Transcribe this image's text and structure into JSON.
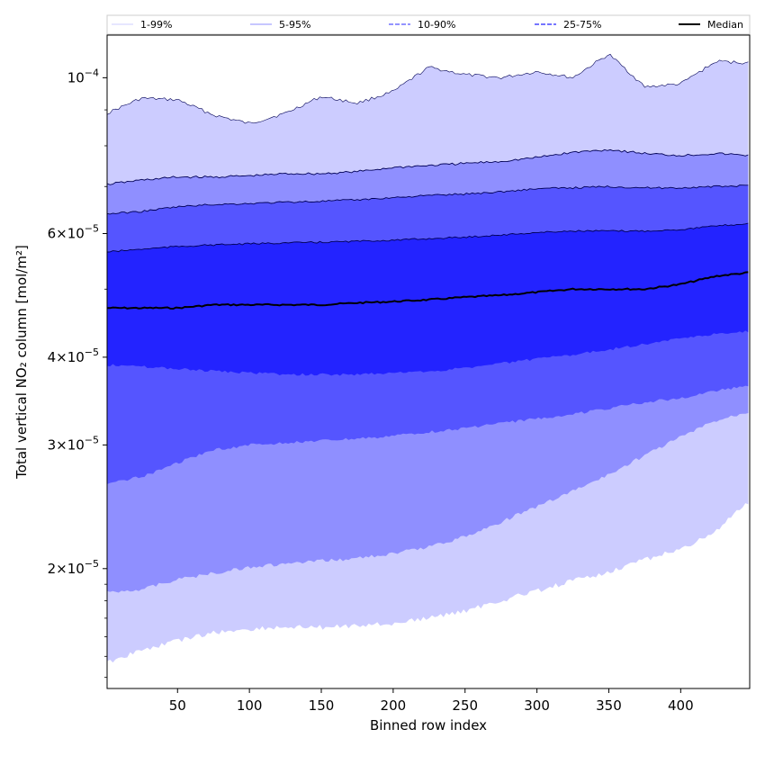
{
  "chart_data": {
    "type": "area",
    "title": "",
    "xlabel": "Binned row index",
    "ylabel": "Total vertical NO₂ column [mol/m²]",
    "xlim": [
      1,
      448
    ],
    "ylim": [
      1.35e-05,
      0.000115
    ],
    "y_scale": "log",
    "x_ticks": [
      50,
      100,
      150,
      200,
      250,
      300,
      350,
      400
    ],
    "y_ticks": [
      {
        "value": 2e-05,
        "mantissa": "2",
        "exponent": "−5"
      },
      {
        "value": 3e-05,
        "mantissa": "3",
        "exponent": "−5"
      },
      {
        "value": 4e-05,
        "mantissa": "4",
        "exponent": "−5"
      },
      {
        "value": 6e-05,
        "mantissa": "6",
        "exponent": "−5"
      },
      {
        "value": 0.0001,
        "mantissa": "",
        "exponent": "−4"
      }
    ],
    "legend_position": "top, horizontal across the plot",
    "legend": [
      "1-99%",
      "5-95%",
      "10-90%",
      "25-75%",
      "Median"
    ],
    "x": [
      1,
      25,
      50,
      75,
      100,
      125,
      150,
      175,
      200,
      225,
      250,
      275,
      300,
      325,
      350,
      375,
      400,
      425,
      448
    ],
    "bands": [
      {
        "name": "1-99%",
        "color": "#ccccff",
        "lower": [
          1.47e-05,
          1.53e-05,
          1.58e-05,
          1.62e-05,
          1.64e-05,
          1.65e-05,
          1.65e-05,
          1.66e-05,
          1.67e-05,
          1.7e-05,
          1.74e-05,
          1.8e-05,
          1.86e-05,
          1.92e-05,
          1.98e-05,
          2.06e-05,
          2.13e-05,
          2.26e-05,
          2.5e-05
        ],
        "upper": [
          8.9e-05,
          9.35e-05,
          9.3e-05,
          8.85e-05,
          8.6e-05,
          8.9e-05,
          9.4e-05,
          9.2e-05,
          9.55e-05,
          0.0001035,
          0.000101,
          0.0001,
          0.000102,
          0.0001,
          0.000108,
          9.7e-05,
          9.8e-05,
          0.0001055,
          0.000105
        ]
      },
      {
        "name": "5-95%",
        "color": "#8f8fff",
        "lower": [
          1.85e-05,
          1.87e-05,
          1.93e-05,
          1.97e-05,
          2.01e-05,
          2.03e-05,
          2.05e-05,
          2.07e-05,
          2.1e-05,
          2.15e-05,
          2.22e-05,
          2.33e-05,
          2.45e-05,
          2.58e-05,
          2.72e-05,
          2.9e-05,
          3.08e-05,
          3.25e-05,
          3.35e-05
        ],
        "upper": [
          7.05e-05,
          7.15e-05,
          7.22e-05,
          7.22e-05,
          7.25e-05,
          7.3e-05,
          7.3e-05,
          7.35e-05,
          7.45e-05,
          7.5e-05,
          7.55e-05,
          7.6e-05,
          7.7e-05,
          7.83e-05,
          7.9e-05,
          7.8e-05,
          7.75e-05,
          7.8e-05,
          7.75e-05
        ]
      },
      {
        "name": "10-90%",
        "color": "#5555ff",
        "lower": [
          2.65e-05,
          2.7e-05,
          2.83e-05,
          2.95e-05,
          3e-05,
          3.02e-05,
          3.04e-05,
          3.06e-05,
          3.09e-05,
          3.13e-05,
          3.17e-05,
          3.22e-05,
          3.27e-05,
          3.32e-05,
          3.38e-05,
          3.45e-05,
          3.5e-05,
          3.58e-05,
          3.65e-05
        ]
      },
      {
        "name": "25-75%",
        "color": "#2323ff",
        "lower": [
          3.9e-05,
          3.88e-05,
          3.85e-05,
          3.82e-05,
          3.8e-05,
          3.78e-05,
          3.78e-05,
          3.78e-05,
          3.8e-05,
          3.82e-05,
          3.86e-05,
          3.92e-05,
          3.98e-05,
          4.03e-05,
          4.1e-05,
          4.18e-05,
          4.25e-05,
          4.32e-05,
          4.35e-05
        ]
      }
    ],
    "band_uppers": {
      "10-90%": [
        6.4e-05,
        6.45e-05,
        6.55e-05,
        6.6e-05,
        6.62e-05,
        6.65e-05,
        6.67e-05,
        6.7e-05,
        6.75e-05,
        6.8e-05,
        6.83e-05,
        6.88e-05,
        6.95e-05,
        6.97e-05,
        7e-05,
        6.97e-05,
        6.97e-05,
        7e-05,
        7.02e-05
      ],
      "25-75%": [
        5.65e-05,
        5.7e-05,
        5.75e-05,
        5.78e-05,
        5.8e-05,
        5.82e-05,
        5.83e-05,
        5.85e-05,
        5.87e-05,
        5.9e-05,
        5.93e-05,
        5.97e-05,
        6.02e-05,
        6.05e-05,
        6.05e-05,
        6.05e-05,
        6.08e-05,
        6.15e-05,
        6.2e-05
      ]
    },
    "median": {
      "name": "Median",
      "color": "#000000",
      "values": [
        4.7e-05,
        4.7e-05,
        4.7e-05,
        4.75e-05,
        4.75e-05,
        4.75e-05,
        4.75e-05,
        4.78e-05,
        4.8e-05,
        4.83e-05,
        4.87e-05,
        4.9e-05,
        4.95e-05,
        5e-05,
        5e-05,
        5e-05,
        5.08e-05,
        5.22e-05,
        5.28e-05
      ]
    }
  }
}
